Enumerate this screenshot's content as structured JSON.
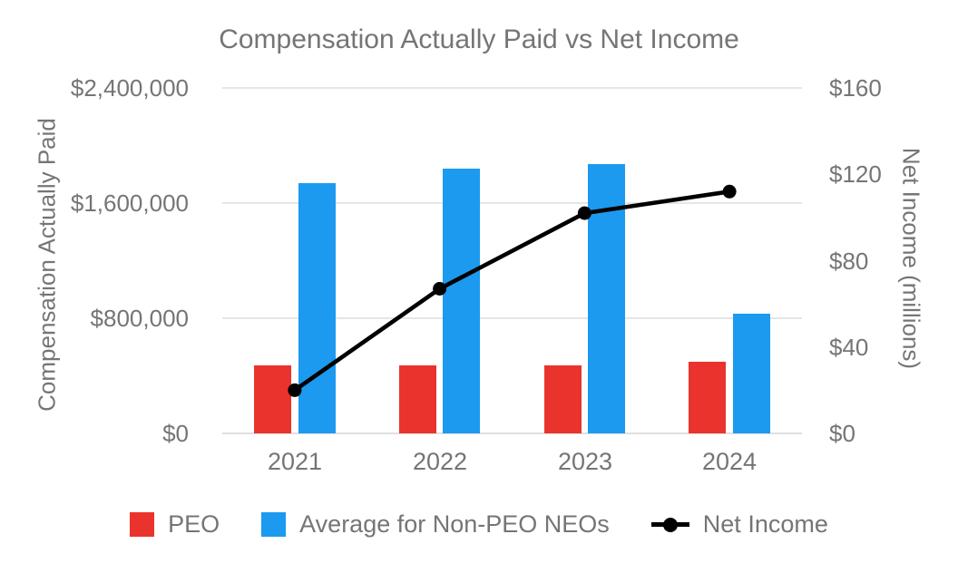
{
  "chart_data": {
    "type": "bar+line combo",
    "title": "Compensation Actually Paid vs Net Income",
    "categories": [
      "2021",
      "2022",
      "2023",
      "2024"
    ],
    "series": [
      {
        "name": "PEO",
        "key": "peo",
        "type": "bar",
        "axis": "left",
        "color": "#EA332D",
        "values": [
          475000,
          475000,
          475000,
          500000
        ]
      },
      {
        "name": "Average for Non-PEO NEOs",
        "key": "non-peo-neos",
        "type": "bar",
        "axis": "left",
        "color": "#1B9AF0",
        "values": [
          1740000,
          1840000,
          1870000,
          830000
        ]
      },
      {
        "name": "Net Income",
        "key": "net-income",
        "type": "line",
        "axis": "right",
        "color": "#000000",
        "values": [
          20,
          67,
          102,
          112
        ]
      }
    ],
    "left_axis": {
      "title": "Compensation Actually Paid",
      "min": 0,
      "max": 2400000,
      "ticks_top_to_bottom": [
        "$2,400,000",
        "$1,600,000",
        "$800,000",
        "$0"
      ]
    },
    "right_axis": {
      "title": "Net Income (millions)",
      "min": 0,
      "max": 160,
      "ticks_top_to_bottom": [
        "$160",
        "$120",
        "$80",
        "$40",
        "$0"
      ]
    },
    "grid": true,
    "legend_position": "bottom",
    "colors": {
      "text": "#757575",
      "gridline": "#e6e6e6",
      "background": "#ffffff"
    }
  }
}
